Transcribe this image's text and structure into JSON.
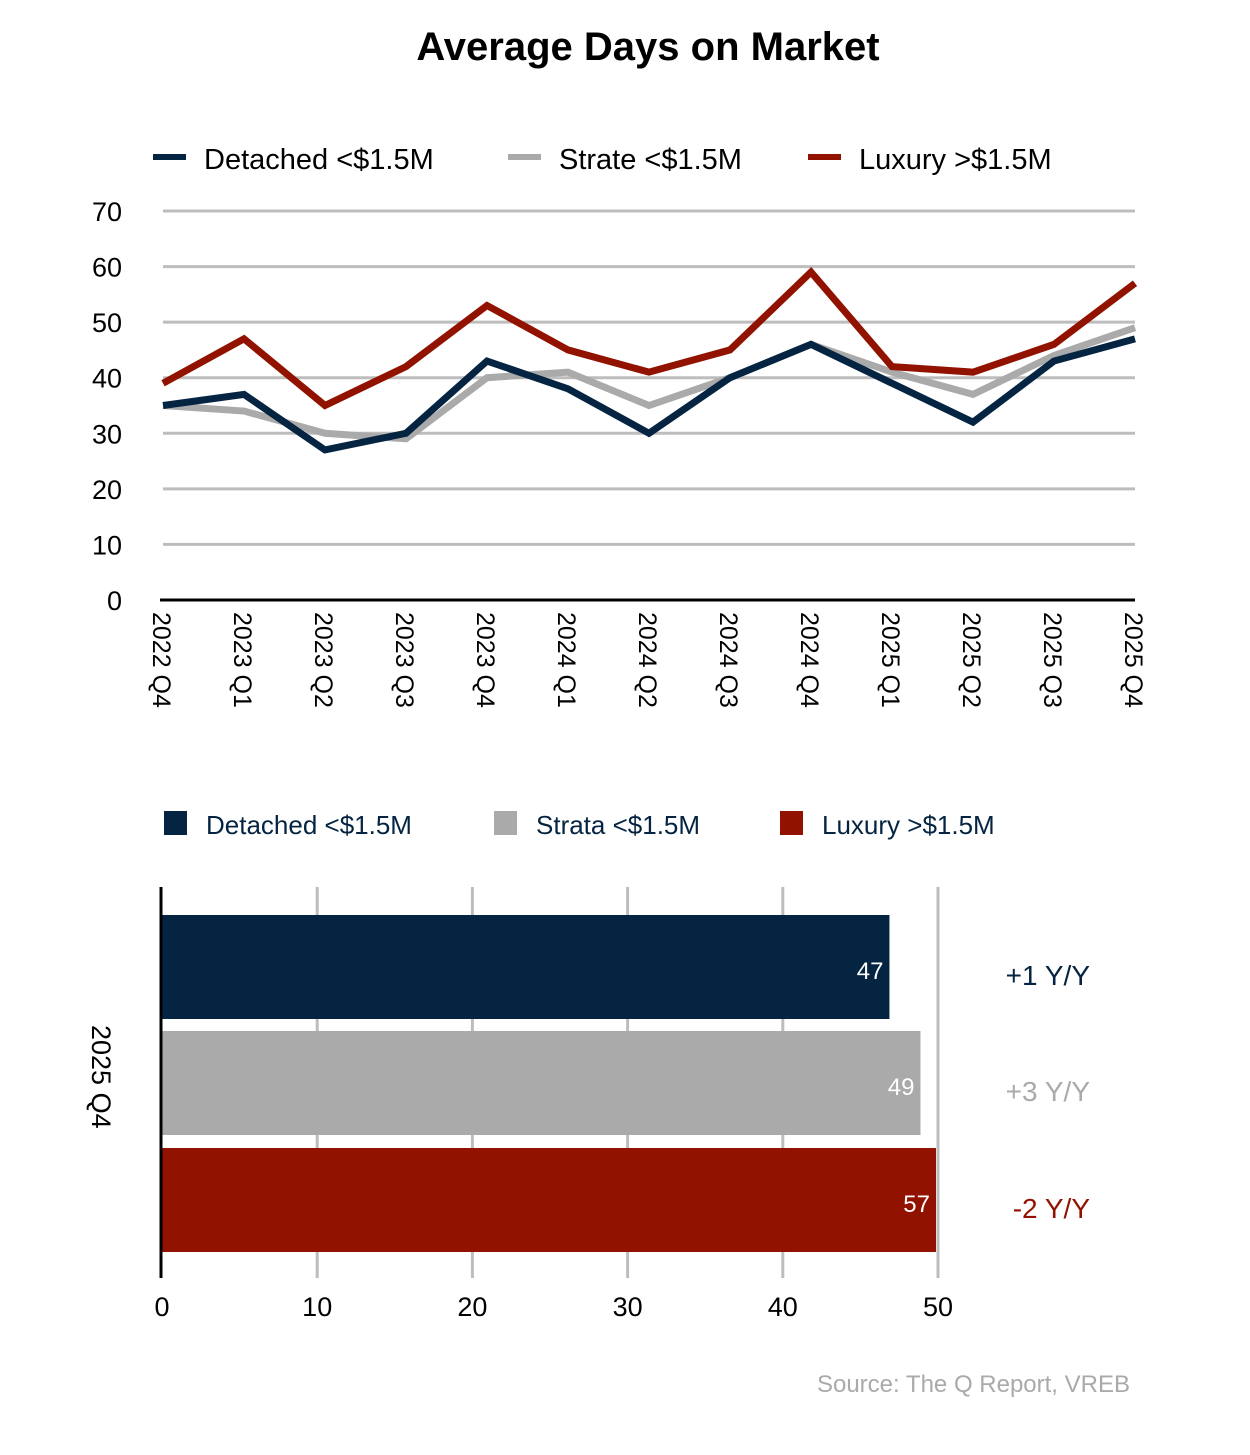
{
  "colors": {
    "detached": "#042442",
    "strata": "#aaaaaa",
    "luxury": "#921200",
    "grid": "#bdbdbd",
    "source": "#aaaaaa"
  },
  "source": "Source: The Q Report, VREB",
  "chart_data": [
    {
      "type": "line",
      "title": "Average Days on Market",
      "legend_position": "top",
      "categories": [
        "2022 Q4",
        "2023 Q1",
        "2023 Q2",
        "2023 Q3",
        "2023 Q4",
        "2024 Q1",
        "2024 Q2",
        "2024 Q3",
        "2024 Q4",
        "2025 Q1",
        "2025 Q2",
        "2025 Q3",
        "2025 Q4"
      ],
      "ylim": [
        0,
        70
      ],
      "yticks": [
        "0",
        "10",
        "20",
        "30",
        "40",
        "50",
        "60",
        "70"
      ],
      "grid": true,
      "series": [
        {
          "name": "Detached <$1.5M",
          "color": "#042442",
          "values": [
            35,
            37,
            27,
            30,
            43,
            38,
            30,
            40,
            46,
            39,
            32,
            43,
            47
          ]
        },
        {
          "name": "Strate <$1.5M",
          "color": "#aaaaaa",
          "values": [
            35,
            34,
            30,
            29,
            40,
            41,
            35,
            40,
            46,
            41,
            37,
            44,
            49
          ]
        },
        {
          "name": "Luxury >$1.5M",
          "color": "#921200",
          "values": [
            39,
            47,
            35,
            42,
            53,
            45,
            41,
            45,
            59,
            42,
            41,
            46,
            57
          ]
        }
      ]
    },
    {
      "type": "bar",
      "orientation": "horizontal",
      "category": "2025 Q4",
      "xlim": [
        0,
        50
      ],
      "xticks": [
        "0",
        "10",
        "20",
        "30",
        "40",
        "50"
      ],
      "grid": true,
      "legend_position": "top",
      "series": [
        {
          "name": "Detached <$1.5M",
          "color": "#042442",
          "value": 47,
          "label": "47",
          "yoy": "+1  Y/Y"
        },
        {
          "name": "Strata <$1.5M",
          "color": "#aaaaaa",
          "value": 49,
          "label": "49",
          "yoy": "+3  Y/Y"
        },
        {
          "name": "Luxury >$1.5M",
          "color": "#921200",
          "value": 57,
          "label": "57",
          "yoy": "-2  Y/Y"
        }
      ]
    }
  ]
}
